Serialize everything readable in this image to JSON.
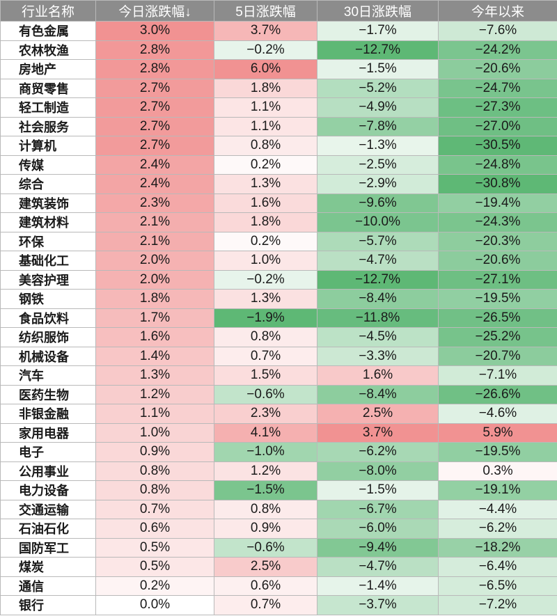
{
  "colors": {
    "header_bg": "#8c8c8c",
    "positive": "#f08c8c",
    "negative": "#55b46e",
    "neutral": "#ffffff"
  },
  "chart_data": {
    "type": "table",
    "columns": [
      "行业名称",
      "今日涨跌幅↓",
      "5日涨跌幅",
      "30日涨跌幅",
      "今年以来"
    ],
    "rows": [
      {
        "name": "有色金属",
        "today": "3.0%",
        "d5": "3.7%",
        "d30": "−1.7%",
        "ytd": "−7.6%"
      },
      {
        "name": "农林牧渔",
        "today": "2.8%",
        "d5": "−0.2%",
        "d30": "−12.7%",
        "ytd": "−24.2%"
      },
      {
        "name": "房地产",
        "today": "2.8%",
        "d5": "6.0%",
        "d30": "−1.5%",
        "ytd": "−20.6%"
      },
      {
        "name": "商贸零售",
        "today": "2.7%",
        "d5": "1.8%",
        "d30": "−5.2%",
        "ytd": "−24.7%"
      },
      {
        "name": "轻工制造",
        "today": "2.7%",
        "d5": "1.1%",
        "d30": "−4.9%",
        "ytd": "−27.3%"
      },
      {
        "name": "社会服务",
        "today": "2.7%",
        "d5": "1.1%",
        "d30": "−7.8%",
        "ytd": "−27.0%"
      },
      {
        "name": "计算机",
        "today": "2.7%",
        "d5": "0.8%",
        "d30": "−1.3%",
        "ytd": "−30.5%"
      },
      {
        "name": "传媒",
        "today": "2.4%",
        "d5": "0.2%",
        "d30": "−2.5%",
        "ytd": "−24.8%"
      },
      {
        "name": "综合",
        "today": "2.4%",
        "d5": "1.3%",
        "d30": "−2.9%",
        "ytd": "−30.8%"
      },
      {
        "name": "建筑装饰",
        "today": "2.3%",
        "d5": "1.6%",
        "d30": "−9.6%",
        "ytd": "−19.4%"
      },
      {
        "name": "建筑材料",
        "today": "2.1%",
        "d5": "1.8%",
        "d30": "−10.0%",
        "ytd": "−24.3%"
      },
      {
        "name": "环保",
        "today": "2.1%",
        "d5": "0.2%",
        "d30": "−5.7%",
        "ytd": "−20.3%"
      },
      {
        "name": "基础化工",
        "today": "2.0%",
        "d5": "1.0%",
        "d30": "−4.7%",
        "ytd": "−20.6%"
      },
      {
        "name": "美容护理",
        "today": "2.0%",
        "d5": "−0.2%",
        "d30": "−12.7%",
        "ytd": "−27.1%"
      },
      {
        "name": "钢铁",
        "today": "1.8%",
        "d5": "1.3%",
        "d30": "−8.4%",
        "ytd": "−19.5%"
      },
      {
        "name": "食品饮料",
        "today": "1.7%",
        "d5": "−1.9%",
        "d30": "−11.8%",
        "ytd": "−26.5%"
      },
      {
        "name": "纺织服饰",
        "today": "1.6%",
        "d5": "0.8%",
        "d30": "−4.5%",
        "ytd": "−25.2%"
      },
      {
        "name": "机械设备",
        "today": "1.4%",
        "d5": "0.7%",
        "d30": "−3.3%",
        "ytd": "−20.7%"
      },
      {
        "name": "汽车",
        "today": "1.3%",
        "d5": "1.5%",
        "d30": "1.6%",
        "ytd": "−7.1%"
      },
      {
        "name": "医药生物",
        "today": "1.2%",
        "d5": "−0.6%",
        "d30": "−8.4%",
        "ytd": "−26.6%"
      },
      {
        "name": "非银金融",
        "today": "1.1%",
        "d5": "2.3%",
        "d30": "2.5%",
        "ytd": "−4.6%"
      },
      {
        "name": "家用电器",
        "today": "1.0%",
        "d5": "4.1%",
        "d30": "3.7%",
        "ytd": "5.9%"
      },
      {
        "name": "电子",
        "today": "0.9%",
        "d5": "−1.0%",
        "d30": "−6.2%",
        "ytd": "−19.5%"
      },
      {
        "name": "公用事业",
        "today": "0.8%",
        "d5": "1.2%",
        "d30": "−8.0%",
        "ytd": "0.3%"
      },
      {
        "name": "电力设备",
        "today": "0.8%",
        "d5": "−1.5%",
        "d30": "−1.5%",
        "ytd": "−19.1%"
      },
      {
        "name": "交通运输",
        "today": "0.7%",
        "d5": "0.8%",
        "d30": "−6.7%",
        "ytd": "−4.4%"
      },
      {
        "name": "石油石化",
        "today": "0.6%",
        "d5": "0.9%",
        "d30": "−6.0%",
        "ytd": "−6.2%"
      },
      {
        "name": "国防军工",
        "today": "0.5%",
        "d5": "−0.6%",
        "d30": "−9.4%",
        "ytd": "−18.2%"
      },
      {
        "name": "煤炭",
        "today": "0.5%",
        "d5": "2.5%",
        "d30": "−4.7%",
        "ytd": "−6.4%"
      },
      {
        "name": "通信",
        "today": "0.2%",
        "d5": "0.6%",
        "d30": "−1.4%",
        "ytd": "−6.5%"
      },
      {
        "name": "银行",
        "today": "0.0%",
        "d5": "0.7%",
        "d30": "−3.7%",
        "ytd": "−7.2%"
      }
    ]
  }
}
